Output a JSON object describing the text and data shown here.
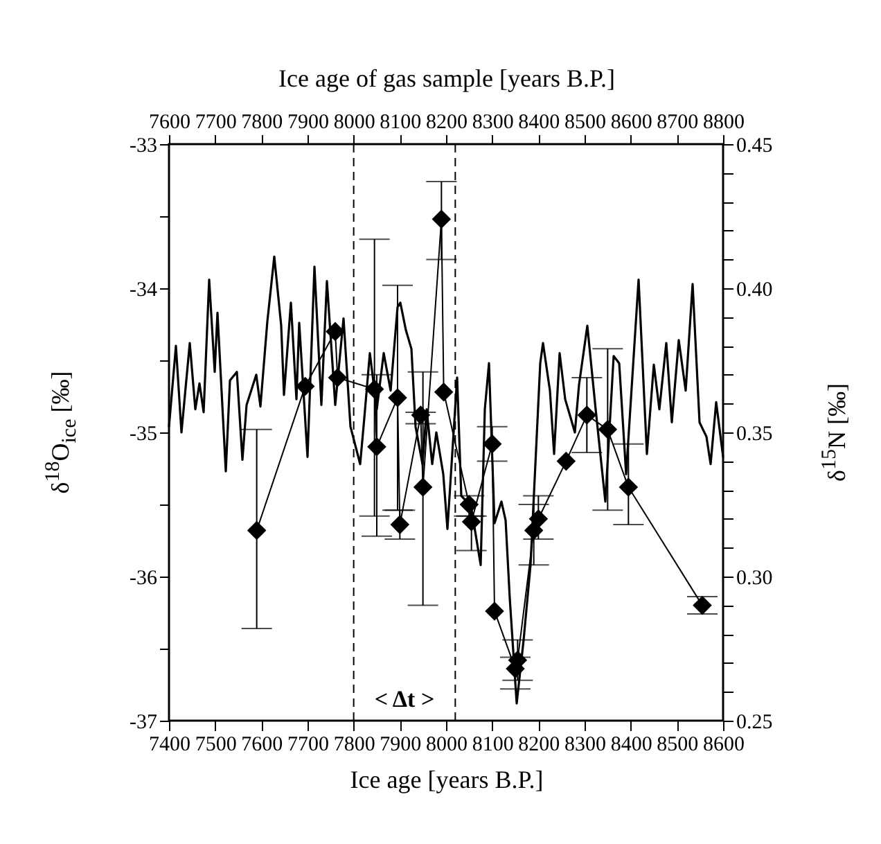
{
  "chart_data": {
    "type": "line",
    "xlabel": "Ice age [years B.P.]",
    "x2label": "Ice age of gas sample [years B.P.]",
    "ylabel": "δ$^{18}$O$_{ice}$ [‰]",
    "y2label": "δ$^{15}$N [‰]",
    "xlim": [
      7400,
      8600
    ],
    "xticks": [
      7400,
      7500,
      7600,
      7700,
      7800,
      7900,
      8000,
      8100,
      8200,
      8300,
      8400,
      8500,
      8600
    ],
    "x2lim": [
      7600,
      8800
    ],
    "x2ticks": [
      7600,
      7700,
      7800,
      7900,
      8000,
      8100,
      8200,
      8300,
      8400,
      8500,
      8600,
      8700,
      8800
    ],
    "ylim": [
      -37,
      -33
    ],
    "yticks": [
      -37,
      {
        "value": -36.5,
        "label": null
      },
      -36,
      {
        "value": -35.5,
        "label": null
      },
      -35,
      {
        "value": -34.5,
        "label": null
      },
      -34,
      {
        "value": -33.5,
        "label": null
      },
      -33
    ],
    "y2lim": [
      0.25,
      0.45
    ],
    "y2ticks": [
      {
        "value": 0.25,
        "label": "0.25"
      },
      {
        "value": 0.26,
        "label": null
      },
      {
        "value": 0.27,
        "label": null
      },
      {
        "value": 0.28,
        "label": null
      },
      {
        "value": 0.29,
        "label": null
      },
      {
        "value": 0.3,
        "label": "0.30"
      },
      {
        "value": 0.31,
        "label": null
      },
      {
        "value": 0.32,
        "label": null
      },
      {
        "value": 0.33,
        "label": null
      },
      {
        "value": 0.34,
        "label": null
      },
      {
        "value": 0.35,
        "label": "0.35"
      },
      {
        "value": 0.36,
        "label": null
      },
      {
        "value": 0.37,
        "label": null
      },
      {
        "value": 0.38,
        "label": null
      },
      {
        "value": 0.39,
        "label": null
      },
      {
        "value": 0.4,
        "label": "0.40"
      },
      {
        "value": 0.41,
        "label": null
      },
      {
        "value": 0.42,
        "label": null
      },
      {
        "value": 0.43,
        "label": null
      },
      {
        "value": 0.44,
        "label": null
      },
      {
        "value": 0.45,
        "label": "0.45"
      }
    ],
    "series": [
      {
        "color": "#000000",
        "x": [
          7400,
          7415,
          7427,
          7445,
          7457,
          7466,
          7475,
          7487,
          7499,
          7505,
          7523,
          7532,
          7547,
          7559,
          7568,
          7589,
          7598,
          7613,
          7628,
          7643,
          7649,
          7664,
          7676,
          7682,
          7700,
          7715,
          7730,
          7742,
          7760,
          7778,
          7793,
          7814,
          7823,
          7835,
          7850,
          7865,
          7880,
          7895,
          7901,
          7913,
          7925,
          7934,
          7949,
          7958,
          7970,
          7979,
          7994,
          8003,
          8012,
          8024,
          8033,
          8054,
          8075,
          8084,
          8093,
          8105,
          8120,
          8129,
          8138,
          8153,
          8168,
          8183,
          8204,
          8210,
          8225,
          8234,
          8246,
          8258,
          8270,
          8279,
          8288,
          8306,
          8324,
          8345,
          8363,
          8375,
          8390,
          8417,
          8435,
          8450,
          8462,
          8477,
          8489,
          8504,
          8519,
          8534,
          8549,
          8564,
          8573,
          8585,
          8600
        ],
        "values": [
          -34.96,
          -34.4,
          -35.0,
          -34.38,
          -34.84,
          -34.66,
          -34.86,
          -33.94,
          -34.58,
          -34.17,
          -35.27,
          -34.64,
          -34.58,
          -35.19,
          -34.81,
          -34.6,
          -34.82,
          -34.23,
          -33.78,
          -34.26,
          -34.74,
          -34.1,
          -34.77,
          -34.24,
          -35.17,
          -33.85,
          -34.81,
          -33.95,
          -34.81,
          -34.21,
          -34.96,
          -35.22,
          -34.9,
          -34.45,
          -34.84,
          -34.45,
          -34.71,
          -34.13,
          -34.1,
          -34.29,
          -34.42,
          -34.96,
          -35.22,
          -34.84,
          -35.22,
          -35.0,
          -35.29,
          -35.67,
          -35.22,
          -34.62,
          -35.44,
          -35.51,
          -35.92,
          -34.84,
          -34.52,
          -35.63,
          -35.48,
          -35.61,
          -36.15,
          -36.88,
          -36.44,
          -35.92,
          -34.52,
          -34.38,
          -34.71,
          -35.15,
          -34.45,
          -34.77,
          -34.9,
          -35.0,
          -34.67,
          -34.26,
          -34.84,
          -35.48,
          -34.47,
          -34.52,
          -35.29,
          -33.94,
          -35.15,
          -34.53,
          -34.84,
          -34.38,
          -34.93,
          -34.36,
          -34.71,
          -33.97,
          -34.93,
          -35.03,
          -35.22,
          -34.79,
          -35.17
        ]
      },
      {
        "axis": "y2",
        "color": "#000000",
        "marker": "diamond",
        "x": [
          7590,
          7695,
          7760,
          7765,
          7845,
          7850,
          7895,
          7900,
          7945,
          7950,
          7990,
          7995,
          8050,
          8055,
          8100,
          8105,
          8150,
          8155,
          8190,
          8200,
          8260,
          8305,
          8350,
          8395,
          8555
        ],
        "values": [
          0.316,
          0.366,
          0.385,
          0.369,
          0.365,
          0.345,
          0.362,
          0.318,
          0.356,
          0.331,
          0.424,
          0.364,
          0.325,
          0.319,
          0.346,
          0.288,
          0.268,
          0.271,
          0.316,
          0.32,
          0.34,
          0.356,
          0.351,
          0.331,
          0.29
        ],
        "errors": [
          [
            0.282,
            0.351
          ],
          null,
          null,
          null,
          [
            0.321,
            0.417
          ],
          [
            0.314,
            0.37
          ],
          [
            0.323,
            0.401
          ],
          [
            0.313,
            0.323
          ],
          [
            0.353,
            0.357
          ],
          [
            0.29,
            0.371
          ],
          [
            0.41,
            0.437
          ],
          null,
          [
            0.321,
            0.328
          ],
          [
            0.309,
            0.321
          ],
          [
            0.34,
            0.352
          ],
          null,
          [
            0.261,
            0.272
          ],
          [
            0.264,
            0.278
          ],
          [
            0.304,
            0.325
          ],
          [
            0.313,
            0.328
          ],
          null,
          [
            0.343,
            0.369
          ],
          [
            0.323,
            0.379
          ],
          [
            0.318,
            0.346
          ],
          [
            0.287,
            0.293
          ]
        ]
      }
    ],
    "ref_lines": [
      {
        "axis": "x",
        "value": 7800,
        "line_style": "dashed"
      },
      {
        "axis": "x",
        "value": 8020,
        "line_style": "dashed"
      }
    ],
    "annotations": [
      "<  Δt  >"
    ]
  }
}
